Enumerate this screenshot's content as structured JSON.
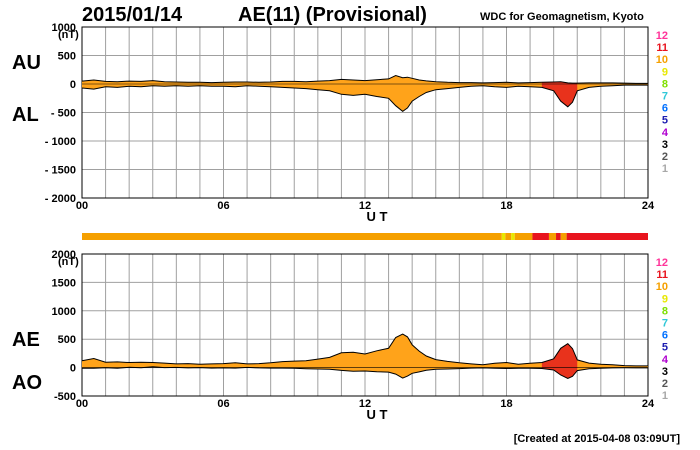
{
  "header": {
    "date": "2015/01/14",
    "title": "AE(11) (Provisional)",
    "source": "WDC for Geomagnetism, Kyoto",
    "created": "[Created at 2015-04-08 03:09UT]"
  },
  "labels": {
    "au": "AU",
    "al": "AL",
    "ae": "AE",
    "ao": "AO"
  },
  "level_scale": {
    "labels": [
      "12",
      "11",
      "10",
      "9",
      "8",
      "7",
      "6",
      "5",
      "4",
      "3",
      "2",
      "1"
    ],
    "colors": [
      "#ff3399",
      "#e8141e",
      "#f5a000",
      "#e8e800",
      "#7fe000",
      "#30c8d8",
      "#0070ff",
      "#1c1cb0",
      "#b000d0",
      "#000000",
      "#555555",
      "#a8a8a8"
    ]
  },
  "colors": {
    "fill_main": "#ffa31a",
    "fill_active": "#e8321c",
    "bar_main": "#ffa31a",
    "bar_yellow": "#ffd21a",
    "bar_red": "#f01e1e",
    "grid": "#a0a0a0"
  },
  "chart_data": [
    {
      "type": "area",
      "name": "AU/AL",
      "ylabel": "(nT)",
      "xlabel": "U T",
      "xticks": [
        "00",
        "06",
        "12",
        "18",
        "24"
      ],
      "yticks": [
        "1000",
        "500",
        "0",
        "- 500",
        "- 1000",
        "- 1500",
        "- 2000"
      ],
      "xlim": [
        0,
        24
      ],
      "ylim": [
        -2000,
        1000
      ],
      "grid": true,
      "x": [
        0,
        0.5,
        1,
        1.5,
        2,
        2.5,
        3,
        3.5,
        4,
        4.5,
        5,
        5.5,
        6,
        6.5,
        7,
        7.5,
        8,
        8.5,
        9,
        9.5,
        10,
        10.5,
        11,
        11.5,
        12,
        12.5,
        13,
        13.3,
        13.6,
        13.8,
        14,
        14.3,
        14.6,
        15,
        15.5,
        16,
        16.5,
        17,
        17.5,
        18,
        18.5,
        19,
        19.5,
        20,
        20.3,
        20.6,
        20.8,
        21,
        21.5,
        22,
        22.5,
        23,
        23.5,
        24
      ],
      "au": [
        50,
        70,
        45,
        40,
        50,
        45,
        60,
        40,
        35,
        30,
        30,
        25,
        30,
        35,
        35,
        30,
        35,
        45,
        45,
        40,
        50,
        60,
        80,
        70,
        60,
        75,
        90,
        150,
        110,
        120,
        100,
        70,
        55,
        40,
        30,
        25,
        25,
        20,
        25,
        30,
        20,
        25,
        30,
        35,
        40,
        20,
        15,
        15,
        20,
        20,
        20,
        15,
        10,
        10
      ],
      "al": [
        -70,
        -90,
        -50,
        -60,
        -40,
        -50,
        -30,
        -40,
        -30,
        -40,
        -30,
        -40,
        -40,
        -50,
        -30,
        -40,
        -50,
        -60,
        -70,
        -80,
        -100,
        -120,
        -180,
        -200,
        -180,
        -220,
        -250,
        -380,
        -480,
        -420,
        -300,
        -220,
        -150,
        -100,
        -80,
        -60,
        -40,
        -30,
        -50,
        -60,
        -40,
        -50,
        -60,
        -120,
        -300,
        -400,
        -320,
        -120,
        -60,
        -40,
        -30,
        -20,
        -20,
        -20
      ]
    },
    {
      "type": "area",
      "name": "AE/AO",
      "ylabel": "(nT)",
      "xlabel": "U T",
      "xticks": [
        "00",
        "06",
        "12",
        "18",
        "24"
      ],
      "yticks": [
        "2000",
        "1500",
        "1000",
        "500",
        "0",
        "-500"
      ],
      "xlim": [
        0,
        24
      ],
      "ylim": [
        -500,
        2000
      ],
      "grid": true,
      "x": [
        0,
        0.5,
        1,
        1.5,
        2,
        2.5,
        3,
        3.5,
        4,
        4.5,
        5,
        5.5,
        6,
        6.5,
        7,
        7.5,
        8,
        8.5,
        9,
        9.5,
        10,
        10.5,
        11,
        11.5,
        12,
        12.5,
        13,
        13.3,
        13.6,
        13.8,
        14,
        14.3,
        14.6,
        15,
        15.5,
        16,
        16.5,
        17,
        17.5,
        18,
        18.5,
        19,
        19.5,
        20,
        20.3,
        20.6,
        20.8,
        21,
        21.5,
        22,
        22.5,
        23,
        23.5,
        24
      ],
      "ae": [
        120,
        160,
        95,
        100,
        90,
        95,
        90,
        80,
        65,
        70,
        60,
        65,
        70,
        85,
        65,
        70,
        85,
        105,
        115,
        120,
        150,
        180,
        260,
        270,
        240,
        295,
        340,
        530,
        590,
        540,
        400,
        290,
        205,
        140,
        110,
        85,
        65,
        50,
        75,
        90,
        60,
        75,
        90,
        155,
        340,
        420,
        335,
        135,
        80,
        60,
        50,
        35,
        30,
        30
      ],
      "ao": [
        -10,
        -10,
        -3,
        -10,
        5,
        -3,
        15,
        0,
        3,
        -5,
        0,
        -8,
        -5,
        -8,
        3,
        -5,
        -8,
        -8,
        -13,
        -20,
        -25,
        -30,
        -50,
        -65,
        -60,
        -73,
        -80,
        -115,
        -185,
        -150,
        -100,
        -75,
        -48,
        -30,
        -25,
        -18,
        -8,
        -5,
        -13,
        -15,
        -10,
        -13,
        -15,
        -43,
        -130,
        -190,
        -153,
        -53,
        -20,
        -10,
        -5,
        -3,
        -5,
        -5
      ]
    },
    {
      "type": "bar",
      "name": "activity-level-bar",
      "segments": [
        {
          "start": 0,
          "end": 17.8,
          "level": "10"
        },
        {
          "start": 17.8,
          "end": 17.95,
          "level": "9"
        },
        {
          "start": 17.95,
          "end": 18.2,
          "level": "10"
        },
        {
          "start": 18.2,
          "end": 18.35,
          "level": "9"
        },
        {
          "start": 18.35,
          "end": 19.1,
          "level": "10"
        },
        {
          "start": 19.1,
          "end": 19.8,
          "level": "11"
        },
        {
          "start": 19.8,
          "end": 20.1,
          "level": "10"
        },
        {
          "start": 20.1,
          "end": 20.3,
          "level": "11"
        },
        {
          "start": 20.3,
          "end": 20.55,
          "level": "10"
        },
        {
          "start": 20.55,
          "end": 24,
          "level": "11"
        }
      ]
    }
  ]
}
